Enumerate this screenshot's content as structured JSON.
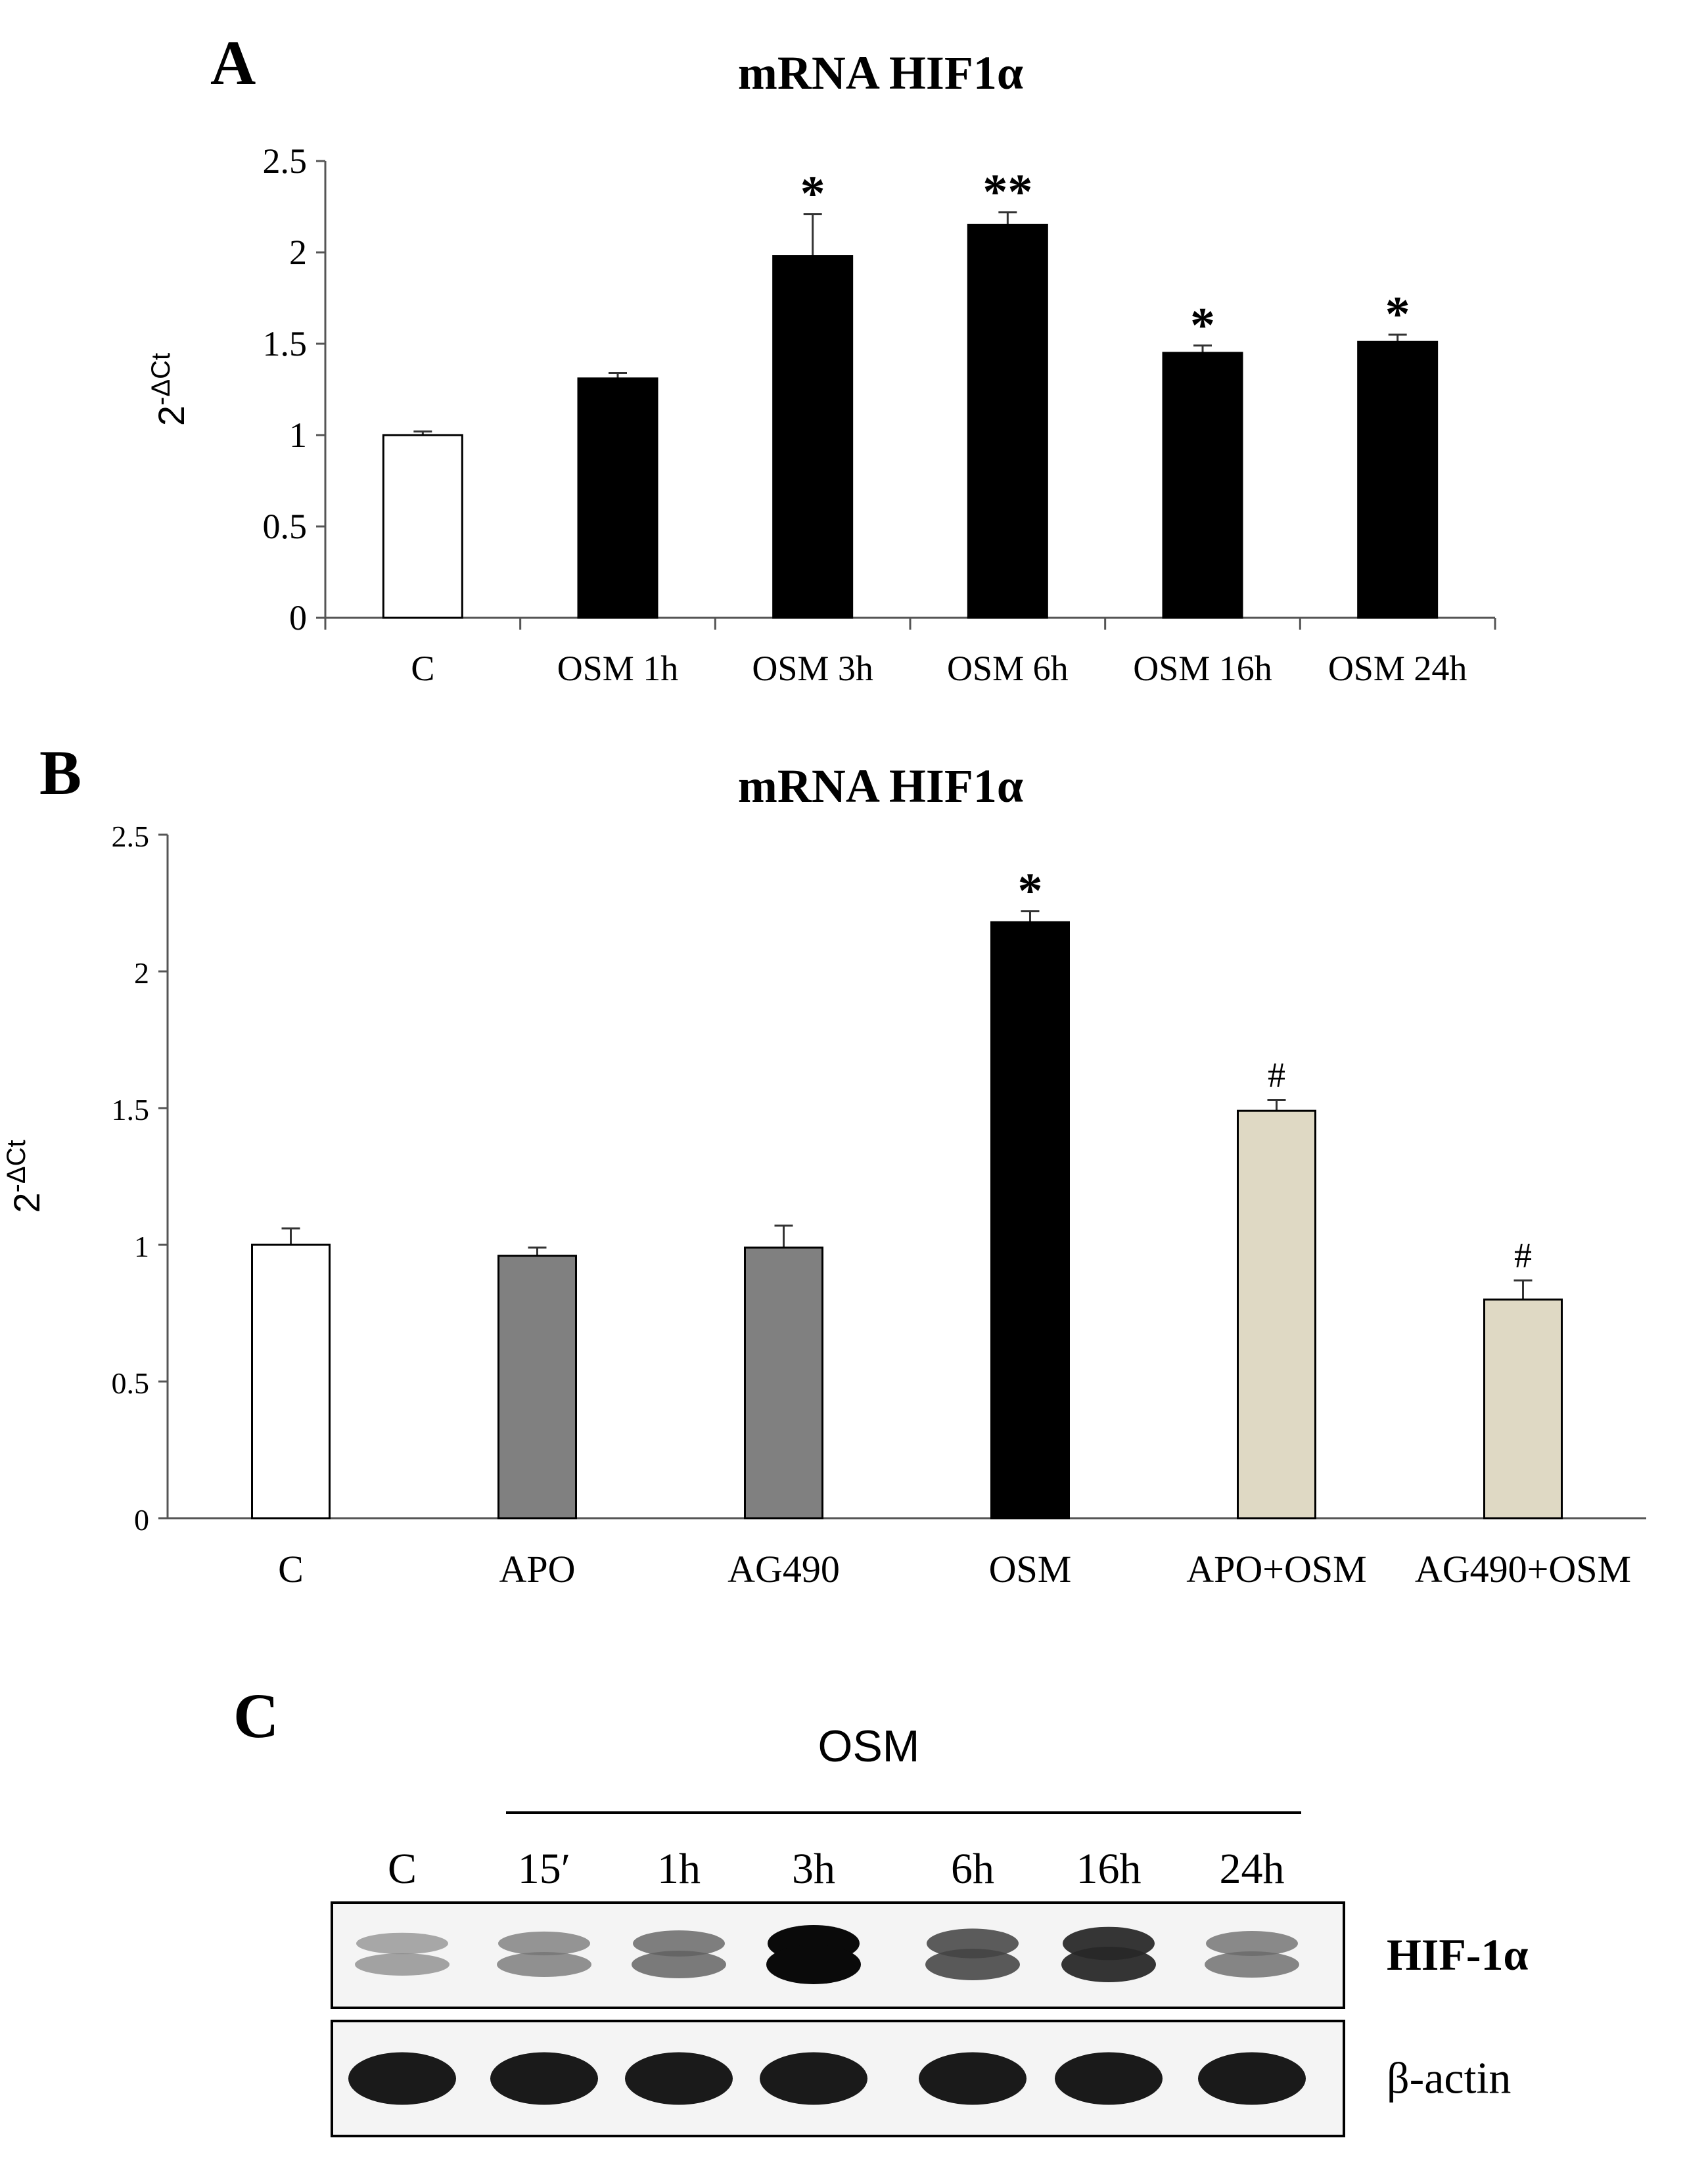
{
  "panels": {
    "a_label": "A",
    "b_label": "B",
    "c_label": "C"
  },
  "chart_data": [
    {
      "id": "A",
      "type": "bar",
      "title": "mRNA HIF1α",
      "ylabel": "2-ΔCt",
      "ylabel_base": "2",
      "ylabel_sup": "-ΔCt",
      "xlabel": "",
      "ylim": [
        0,
        2.5
      ],
      "yticks": [
        0,
        0.5,
        1,
        1.5,
        2,
        2.5
      ],
      "ytick_labels": [
        "0",
        "0.5",
        "1",
        "1.5",
        "2",
        "2.5"
      ],
      "grid": false,
      "categories": [
        "C",
        "OSM 1h",
        "OSM  3h",
        "OSM 6h",
        "OSM 16h",
        "OSM 24h"
      ],
      "values": [
        1.0,
        1.31,
        1.98,
        2.15,
        1.45,
        1.51
      ],
      "errors": [
        0.02,
        0.03,
        0.23,
        0.07,
        0.04,
        0.04
      ],
      "fills": [
        "#ffffff",
        "#000000",
        "#000000",
        "#000000",
        "#000000",
        "#000000"
      ],
      "annotations": [
        "",
        "",
        "*",
        "**",
        "*",
        "*"
      ]
    },
    {
      "id": "B",
      "type": "bar",
      "title": "mRNA HIF1α",
      "ylabel": "2-ΔCt",
      "ylabel_base": "2",
      "ylabel_sup": "-ΔCt",
      "xlabel": "",
      "ylim": [
        0,
        2.5
      ],
      "yticks": [
        0,
        0.5,
        1,
        1.5,
        2,
        2.5
      ],
      "ytick_labels": [
        "0",
        "0.5",
        "1",
        "1.5",
        "2",
        "2.5"
      ],
      "grid": false,
      "categories": [
        "C",
        "APO",
        "AG490",
        "OSM",
        "APO+OSM",
        "AG490+OSM"
      ],
      "values": [
        1.0,
        0.96,
        0.99,
        2.18,
        1.49,
        0.8
      ],
      "errors": [
        0.06,
        0.03,
        0.08,
        0.04,
        0.04,
        0.07
      ],
      "fills": [
        "#ffffff",
        "#808080",
        "#808080",
        "#000000",
        "#dfd9c4",
        "#dfd9c4"
      ],
      "annotations": [
        "",
        "",
        "",
        "*",
        "#",
        "#"
      ]
    }
  ],
  "blot": {
    "group_label": "OSM",
    "lanes": [
      "C",
      "15′",
      "1h",
      "3h",
      "6h",
      "16h",
      "24h"
    ],
    "rows": [
      {
        "label": "HIF-1α",
        "intensities": [
          0.35,
          0.45,
          0.55,
          1.0,
          0.7,
          0.85,
          0.5
        ]
      },
      {
        "label": "β-actin",
        "intensities": [
          0.9,
          0.9,
          0.9,
          0.9,
          0.9,
          0.9,
          0.9
        ]
      }
    ]
  }
}
